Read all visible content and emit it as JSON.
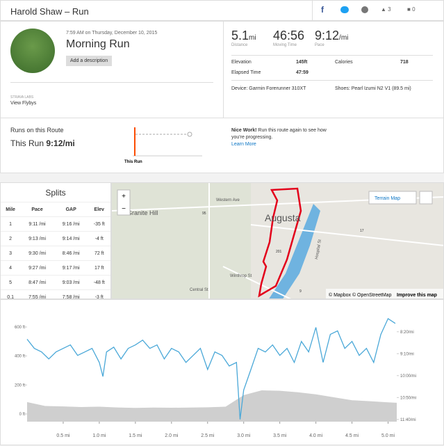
{
  "header": {
    "title": "Harold Shaw – Run",
    "likes": "3",
    "comments": "0"
  },
  "activity": {
    "datetime": "7:59 AM on Thursday, December 10, 2015",
    "name": "Morning Run",
    "add_description": "Add a description",
    "labs": "STRAVA LABS",
    "flyby": "View Flybys"
  },
  "stats": [
    {
      "value": "5.1",
      "unit": "mi",
      "label": "Distance"
    },
    {
      "value": "46:56",
      "label": "Moving Time"
    },
    {
      "value": "9:12",
      "unit": "/mi",
      "label": "Pace"
    }
  ],
  "details": {
    "elevation_label": "Elevation",
    "elevation": "145ft",
    "calories_label": "Calories",
    "calories": "718",
    "elapsed_label": "Elapsed Time",
    "elapsed": "47:59",
    "device": "Device: Garmin Forerunner 310XT",
    "shoes": "Shoes: Pearl Izumi N2 V1 (89.5 mi)"
  },
  "route": {
    "title": "Runs on this Route",
    "this_run": "This Run",
    "pace": "9:12/mi",
    "marker": "This Run",
    "nice": "Nice Work!",
    "message": "Run this route again to see how you're progressing.",
    "learn_more": "Learn More"
  },
  "splits": {
    "title": "Splits",
    "headers": [
      "Mile",
      "Pace",
      "GAP",
      "Elev"
    ],
    "rows": [
      [
        "1",
        "9:11 /mi",
        "9:16 /mi",
        "-35 ft"
      ],
      [
        "2",
        "9:13 /mi",
        "9:14 /mi",
        "-4 ft"
      ],
      [
        "3",
        "9:30 /mi",
        "8:46 /mi",
        "72 ft"
      ],
      [
        "4",
        "9:27 /mi",
        "9:17 /mi",
        "17 ft"
      ],
      [
        "5",
        "8:47 /mi",
        "9:03 /mi",
        "-48 ft"
      ],
      [
        "0.1",
        "7:55 /mi",
        "7:58 /mi",
        "-3 ft"
      ]
    ]
  },
  "map": {
    "zoom_in": "+",
    "zoom_out": "−",
    "layer": "Terrain Map",
    "city": "Augusta",
    "hill": "Granite Hill",
    "western": "Western Ave",
    "winthrop": "Winthrop St",
    "central": "Central St",
    "hospital": "Hospital St",
    "r201": "201",
    "r17": "17",
    "r9": "9",
    "r95": "95",
    "attribution": "© Mapbox © OpenStreetMap",
    "improve": "Improve this map"
  },
  "chart_data": {
    "type": "line",
    "xlim": [
      0,
      5.12
    ],
    "ylim": [
      -53,
      667
    ],
    "y2lim": [
      705,
      467
    ],
    "xticks": [
      {
        "value": 0.5,
        "label": "0.5 mi"
      },
      {
        "value": 1,
        "label": "1.0 mi"
      },
      {
        "value": 1.5,
        "label": "1.5 mi"
      },
      {
        "value": 2,
        "label": "2.0 mi"
      },
      {
        "value": 2.5,
        "label": "2.5 mi"
      },
      {
        "value": 3,
        "label": "3.0 mi"
      },
      {
        "value": 3.5,
        "label": "3.5 mi"
      },
      {
        "value": 4,
        "label": "4.0 mi"
      },
      {
        "value": 4.5,
        "label": "4.5 mi"
      },
      {
        "value": 5,
        "label": "5.0 mi"
      }
    ],
    "yticks": [
      {
        "value": 600,
        "label": "600 ft"
      },
      {
        "value": 400,
        "label": "400 ft"
      },
      {
        "value": 200,
        "label": "200 ft"
      },
      {
        "value": 0,
        "label": "0 ft"
      }
    ],
    "y2ticks": [
      {
        "value": 500,
        "label": "8:20/mi"
      },
      {
        "value": 550,
        "label": "9:10/mi"
      },
      {
        "value": 600,
        "label": "10:00/mi"
      },
      {
        "value": 650,
        "label": "10:50/mi"
      },
      {
        "value": 700,
        "label": "11:40/mi"
      }
    ],
    "series": [
      {
        "color": "#cfcfcf",
        "fill": true,
        "x": [
          0,
          0.25,
          0.5,
          0.75,
          1,
          1.25,
          1.5,
          1.75,
          2,
          2.25,
          2.5,
          2.75,
          3,
          3.25,
          3.5,
          3.75,
          4,
          4.25,
          4.5,
          4.75,
          5,
          5.12
        ],
        "values": [
          82,
          55,
          52,
          48,
          50,
          45,
          42,
          44,
          43,
          44,
          46,
          50,
          130,
          163,
          160,
          150,
          135,
          115,
          95,
          88,
          80,
          77
        ]
      },
      {
        "color": "#4aa8d8",
        "axis": "y2",
        "x": [
          0,
          0.1,
          0.2,
          0.3,
          0.4,
          0.5,
          0.6,
          0.7,
          0.8,
          0.9,
          1,
          1.05,
          1.1,
          1.2,
          1.3,
          1.4,
          1.5,
          1.6,
          1.7,
          1.8,
          1.9,
          2,
          2.1,
          2.2,
          2.3,
          2.4,
          2.5,
          2.6,
          2.7,
          2.8,
          2.9,
          2.95,
          3,
          3.1,
          3.2,
          3.3,
          3.4,
          3.5,
          3.6,
          3.7,
          3.8,
          3.9,
          4,
          4.1,
          4.2,
          4.3,
          4.4,
          4.5,
          4.6,
          4.7,
          4.8,
          4.9,
          5,
          5.1
        ],
        "values": [
          517,
          538,
          546,
          562,
          546,
          538,
          530,
          554,
          546,
          538,
          570,
          602,
          546,
          535,
          562,
          538,
          530,
          519,
          538,
          530,
          562,
          538,
          546,
          570,
          554,
          538,
          586,
          546,
          554,
          578,
          570,
          700,
          633,
          586,
          538,
          546,
          530,
          554,
          538,
          570,
          522,
          546,
          490,
          570,
          506,
          498,
          538,
          522,
          554,
          538,
          570,
          506,
          470,
          481
        ]
      }
    ]
  }
}
